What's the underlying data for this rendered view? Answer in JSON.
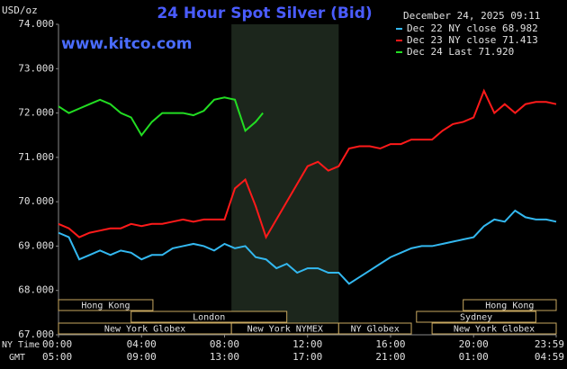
{
  "chart_data": {
    "type": "line",
    "title": "24 Hour Spot Silver (Bid)",
    "timestamp": "December 24, 2025 09:11",
    "unit_label": "USD/oz",
    "watermark": "www.kitco.com",
    "background": "#000000",
    "ylim": [
      67,
      74
    ],
    "yticks": [
      {
        "value": 67,
        "label": "67.000"
      },
      {
        "value": 68,
        "label": "68.000"
      },
      {
        "value": 69,
        "label": "69.000"
      },
      {
        "value": 70,
        "label": "70.000"
      },
      {
        "value": 71,
        "label": "71.000"
      },
      {
        "value": 72,
        "label": "72.000"
      },
      {
        "value": 73,
        "label": "73.000"
      },
      {
        "value": 74,
        "label": "74.000"
      }
    ],
    "xlim": [
      0,
      23.98
    ],
    "xticks": [
      {
        "value": 0,
        "label": "00:00"
      },
      {
        "value": 4,
        "label": "04:00"
      },
      {
        "value": 8,
        "label": "08:00"
      },
      {
        "value": 12,
        "label": "12:00"
      },
      {
        "value": 16,
        "label": "16:00"
      },
      {
        "value": 20,
        "label": "20:00"
      },
      {
        "value": 23.98,
        "label": "23:59"
      }
    ],
    "xticks_gmt": [
      "05:00",
      "09:00",
      "13:00",
      "17:00",
      "21:00",
      "01:00",
      "04:59"
    ],
    "xtick_row_labels": [
      "NY Time",
      "GMT"
    ],
    "highlight_span": [
      8.333,
      13.5
    ],
    "session_rows": [
      [
        {
          "name": "Hong Kong",
          "start": 0,
          "end": 4.55
        },
        {
          "name": "Hong Kong",
          "start": 19.5,
          "end": 23.98
        }
      ],
      [
        {
          "name": "London",
          "start": 3.5,
          "end": 11
        },
        {
          "name": "Sydney",
          "start": 17.25,
          "end": 23
        }
      ],
      [
        {
          "name": "New York Globex",
          "start": 0,
          "end": 8.333
        },
        {
          "name": "New York NYMEX",
          "start": 8.333,
          "end": 13.5
        },
        {
          "name": "NY Globex",
          "start": 13.5,
          "end": 17
        },
        {
          "name": "New York Globex",
          "start": 18,
          "end": 23.98
        }
      ]
    ],
    "series": [
      {
        "name": "Dec 22 NY close 68.982",
        "color": "#33b8f0",
        "x": [
          0,
          0.5,
          1,
          1.5,
          2,
          2.5,
          3,
          3.5,
          4,
          4.5,
          5,
          5.5,
          6,
          6.5,
          7,
          7.5,
          8,
          8.5,
          9,
          9.5,
          10,
          10.5,
          11,
          11.5,
          12,
          12.5,
          13,
          13.5,
          14,
          14.5,
          15,
          15.5,
          16,
          16.5,
          17,
          17.5,
          18,
          18.5,
          19,
          19.5,
          20,
          20.5,
          21,
          21.5,
          22,
          22.5,
          23,
          23.5,
          23.98
        ],
        "values": [
          69.3,
          69.2,
          68.7,
          68.8,
          68.9,
          68.8,
          68.9,
          68.85,
          68.7,
          68.8,
          68.8,
          68.95,
          69.0,
          69.05,
          69.0,
          68.9,
          69.05,
          68.95,
          69.0,
          68.75,
          68.7,
          68.5,
          68.6,
          68.4,
          68.5,
          68.5,
          68.4,
          68.4,
          68.15,
          68.3,
          68.45,
          68.6,
          68.75,
          68.85,
          68.95,
          69.0,
          69.0,
          69.05,
          69.1,
          69.15,
          69.2,
          69.45,
          69.6,
          69.55,
          69.8,
          69.65,
          69.6,
          69.6,
          69.55
        ]
      },
      {
        "name": "Dec 23 NY close 71.413",
        "color": "#ff1a1a",
        "x": [
          0,
          0.5,
          1,
          1.5,
          2,
          2.5,
          3,
          3.5,
          4,
          4.5,
          5,
          5.5,
          6,
          6.5,
          7,
          7.5,
          8,
          8.5,
          9,
          9.5,
          10,
          10.5,
          11,
          11.5,
          12,
          12.5,
          13,
          13.5,
          14,
          14.5,
          15,
          15.5,
          16,
          16.5,
          17,
          17.5,
          18,
          18.5,
          19,
          19.5,
          20,
          20.5,
          21,
          21.5,
          22,
          22.5,
          23,
          23.5,
          23.98
        ],
        "values": [
          69.5,
          69.4,
          69.2,
          69.3,
          69.35,
          69.4,
          69.4,
          69.5,
          69.45,
          69.5,
          69.5,
          69.55,
          69.6,
          69.55,
          69.6,
          69.6,
          69.6,
          70.3,
          70.5,
          69.9,
          69.2,
          69.6,
          70.0,
          70.4,
          70.8,
          70.9,
          70.7,
          70.8,
          71.2,
          71.25,
          71.25,
          71.2,
          71.3,
          71.3,
          71.4,
          71.4,
          71.4,
          71.6,
          71.75,
          71.8,
          71.9,
          72.5,
          72.0,
          72.2,
          72.0,
          72.2,
          72.25,
          72.25,
          72.2
        ]
      },
      {
        "name": "Dec 24 Last 71.920",
        "color": "#22dd22",
        "x": [
          0,
          0.5,
          1,
          1.5,
          2,
          2.5,
          3,
          3.5,
          4,
          4.5,
          5,
          5.5,
          6,
          6.5,
          7,
          7.5,
          8,
          8.5,
          9,
          9.5,
          9.85
        ],
        "values": [
          72.15,
          72.0,
          72.1,
          72.2,
          72.3,
          72.2,
          72.0,
          71.9,
          71.5,
          71.8,
          72.0,
          72.0,
          72.0,
          71.95,
          72.05,
          72.3,
          72.35,
          72.3,
          71.6,
          71.8,
          72.0
        ]
      }
    ]
  }
}
